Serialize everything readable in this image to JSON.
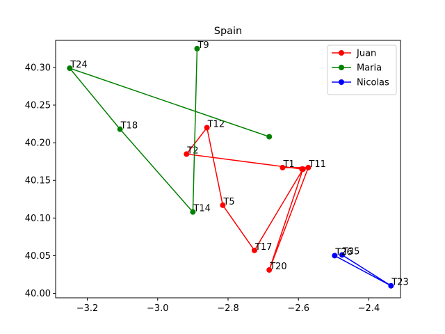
{
  "chart_data": {
    "type": "line",
    "title": "Spain",
    "xlabel": "",
    "ylabel": "",
    "xlim": [
      -3.29,
      -2.31
    ],
    "ylim": [
      39.994,
      40.336
    ],
    "xticks": [
      -3.2,
      -3.0,
      -2.8,
      -2.6,
      -2.4
    ],
    "xtick_labels": [
      "−3.2",
      "−3.0",
      "−2.8",
      "−2.6",
      "−2.4"
    ],
    "yticks": [
      40.0,
      40.05,
      40.1,
      40.15,
      40.2,
      40.25,
      40.3
    ],
    "ytick_labels": [
      "40.00",
      "40.05",
      "40.10",
      "40.15",
      "40.20",
      "40.25",
      "40.30"
    ],
    "grid": false,
    "legend_position": "top-right",
    "series": [
      {
        "name": "Juan",
        "color": "#ff0000",
        "points": [
          {
            "label": "T1",
            "x": -2.645,
            "y": 40.167
          },
          {
            "label": "T11",
            "x": -2.572,
            "y": 40.167
          },
          {
            "label": "T20",
            "x": -2.683,
            "y": 40.031
          },
          {
            "label": "",
            "x": -2.587,
            "y": 40.165
          },
          {
            "label": "T17",
            "x": -2.725,
            "y": 40.057
          },
          {
            "label": "T5",
            "x": -2.815,
            "y": 40.117
          },
          {
            "label": "T12",
            "x": -2.86,
            "y": 40.22
          },
          {
            "label": "T2",
            "x": -2.918,
            "y": 40.185
          },
          {
            "label": "",
            "x": -2.59,
            "y": 40.165
          }
        ]
      },
      {
        "name": "Maria",
        "color": "#008000",
        "points": [
          {
            "label": "",
            "x": -2.683,
            "y": 40.208
          },
          {
            "label": "T24",
            "x": -3.25,
            "y": 40.299
          },
          {
            "label": "T18",
            "x": -3.107,
            "y": 40.218
          },
          {
            "label": "T14",
            "x": -2.9,
            "y": 40.108
          },
          {
            "label": "T9",
            "x": -2.888,
            "y": 40.325
          }
        ]
      },
      {
        "name": "Nicolas",
        "color": "#0000ff",
        "points": [
          {
            "label": "T26",
            "x": -2.497,
            "y": 40.05
          },
          {
            "label": "T23",
            "x": -2.337,
            "y": 40.01
          },
          {
            "label": "T35",
            "x": -2.476,
            "y": 40.051
          }
        ]
      }
    ]
  }
}
